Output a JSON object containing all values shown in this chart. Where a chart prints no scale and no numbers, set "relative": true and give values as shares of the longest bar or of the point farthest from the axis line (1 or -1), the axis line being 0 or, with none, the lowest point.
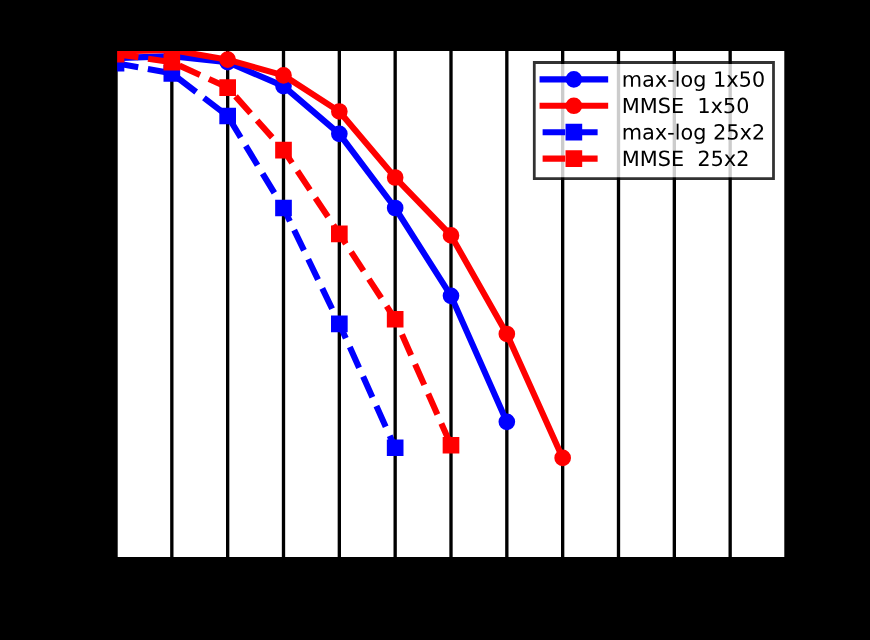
{
  "chart_data": {
    "type": "line",
    "relative": true,
    "grid": "x",
    "legend": "top right",
    "categories": [
      null,
      null,
      null,
      null,
      null,
      null,
      null,
      null,
      null,
      null,
      null,
      null,
      null
    ],
    "series": [
      {
        "name": "max-log 1x50",
        "color": "#0000ff",
        "line_style": "solid",
        "marker": "circle",
        "values": [
          0.984,
          0.988,
          0.976,
          0.929,
          0.835,
          0.689,
          0.516,
          0.268,
          null,
          null,
          null,
          null,
          null
        ]
      },
      {
        "name": "MMSE  1x50",
        "color": "#ff0000",
        "line_style": "solid",
        "marker": "circle",
        "values": [
          0.997,
          1.0,
          0.981,
          0.95,
          0.879,
          0.749,
          0.635,
          0.441,
          0.197,
          null,
          null,
          null,
          null
        ]
      },
      {
        "name": "max-log 25x2",
        "color": "#0000ff",
        "line_style": "dashed",
        "marker": "square",
        "values": [
          0.974,
          0.954,
          0.87,
          0.689,
          0.461,
          0.217,
          null,
          null,
          null,
          null,
          null,
          null,
          null
        ]
      },
      {
        "name": "MMSE  25x2",
        "color": "#ff0000",
        "line_style": "dashed",
        "marker": "square",
        "values": [
          0.992,
          0.976,
          0.926,
          0.803,
          0.638,
          0.47,
          0.222,
          null,
          null,
          null,
          null,
          null,
          null
        ]
      }
    ]
  }
}
